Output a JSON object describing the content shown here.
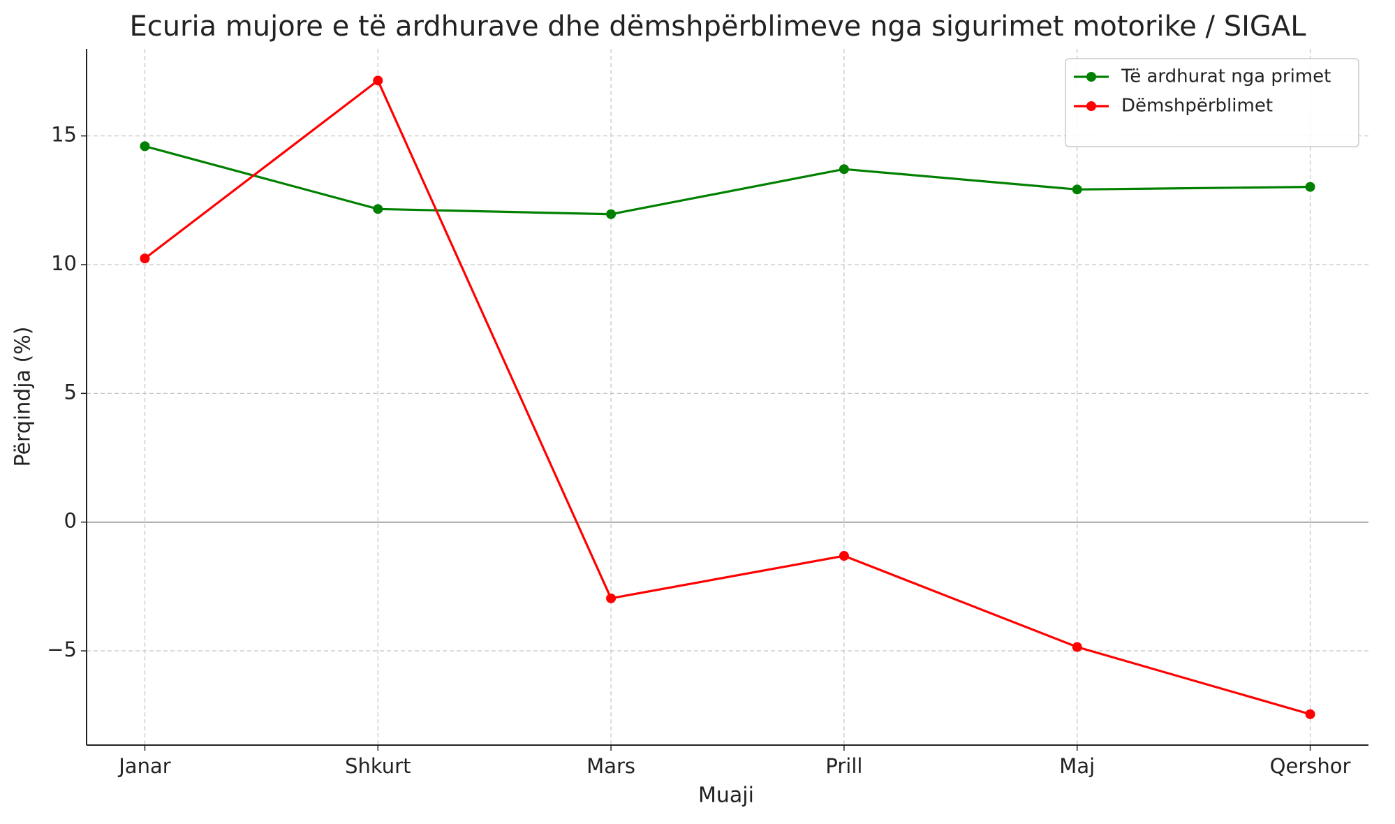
{
  "chart_data": {
    "type": "line",
    "title": "Ecuria mujore e të ardhurave dhe dëmshpërblimeve nga sigurimet motorike / SIGAL",
    "xlabel": "Muaji",
    "ylabel": "Përqindja (%)",
    "categories": [
      "Janar",
      "Shkurt",
      "Mars",
      "Prill",
      "Maj",
      "Qershor"
    ],
    "series": [
      {
        "name": "Të ardhurat nga primet",
        "color": "#008000",
        "values": [
          14.6,
          12.16,
          11.96,
          13.71,
          12.92,
          13.02
        ]
      },
      {
        "name": "Dëmshpërblimet",
        "color": "#ff0000",
        "values": [
          10.24,
          17.15,
          -2.96,
          -1.31,
          -4.85,
          -7.46
        ]
      }
    ],
    "ylim": [
      -8.66,
      18.38
    ],
    "yticks": [
      {
        "value": -5,
        "label": "−5"
      },
      0,
      5,
      10,
      15
    ],
    "axhline": 0,
    "grid": true,
    "legend": "upper right"
  }
}
